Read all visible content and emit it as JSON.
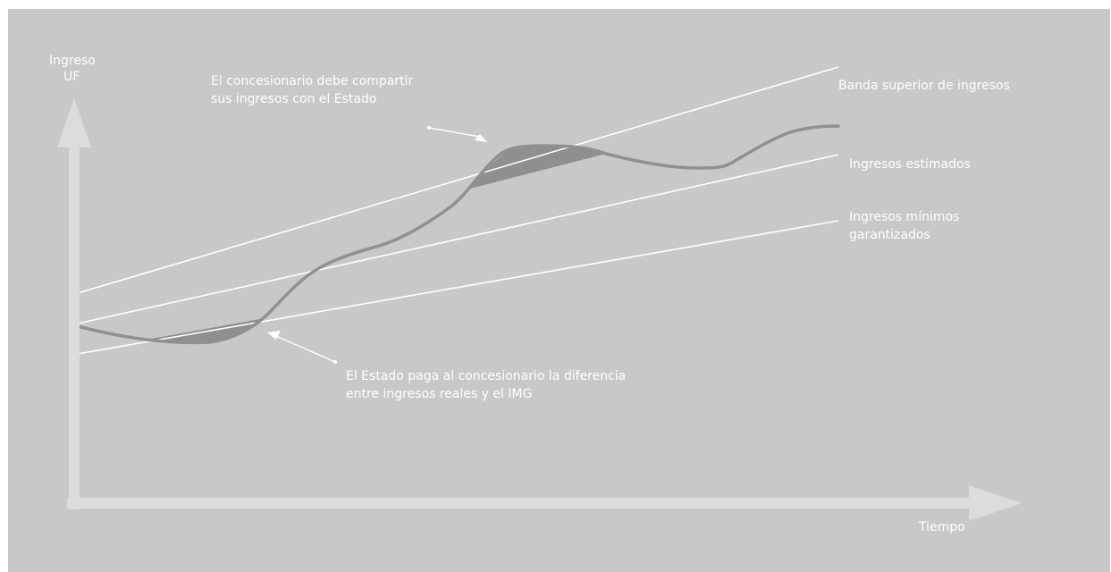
{
  "colors": {
    "background": "#c8c8c9",
    "axis": "#dcdcdc",
    "band_lines": "#ffffff",
    "revenue_curve": "#909090",
    "shaded_area": "#8f8f8f",
    "text": "#ffffff"
  },
  "axes": {
    "y_label_line1": "Ingreso",
    "y_label_line2": "UF",
    "x_label": "Tiempo"
  },
  "series_labels": {
    "upper_band": "Banda superior de ingresos",
    "estimated": "Ingresos estimados",
    "minimum_line1": "Ingresos mínimos",
    "minimum_line2": "garantizados"
  },
  "annotations": {
    "share_line1": "El concesionario debe compartir",
    "share_line2": "sus ingresos con el Estado",
    "pay_line1": "El Estado paga al concesionario la diferencia",
    "pay_line2": "entre ingresos reales y el IMG"
  }
}
